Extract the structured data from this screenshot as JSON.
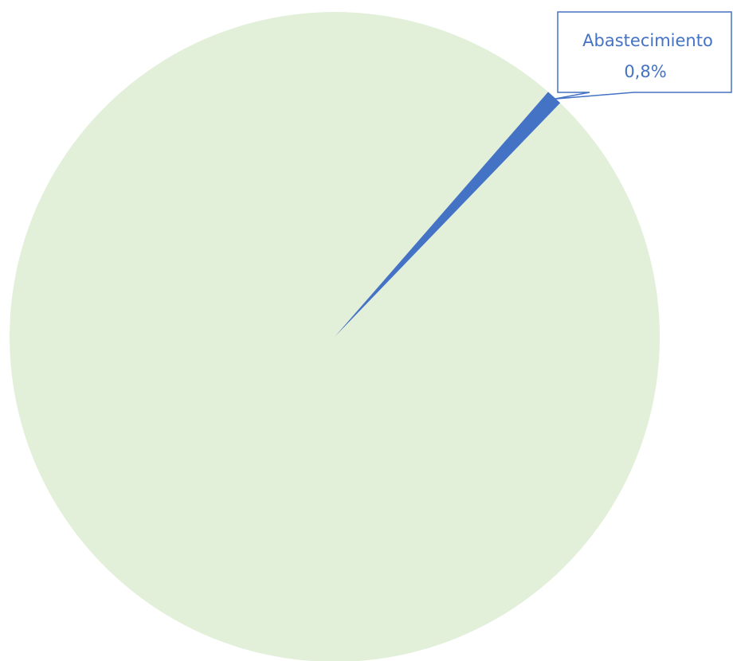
{
  "chart_data": {
    "type": "pie",
    "title": "",
    "slices": [
      {
        "label": "",
        "value": 99.2,
        "color": "#e2efd9"
      },
      {
        "label": "Abastecimiento",
        "value": 0.8,
        "display_value": "0,8%",
        "color": "#4472c4"
      }
    ],
    "callout_color": "#4472c4",
    "callout_text_color": "#4472c4"
  }
}
